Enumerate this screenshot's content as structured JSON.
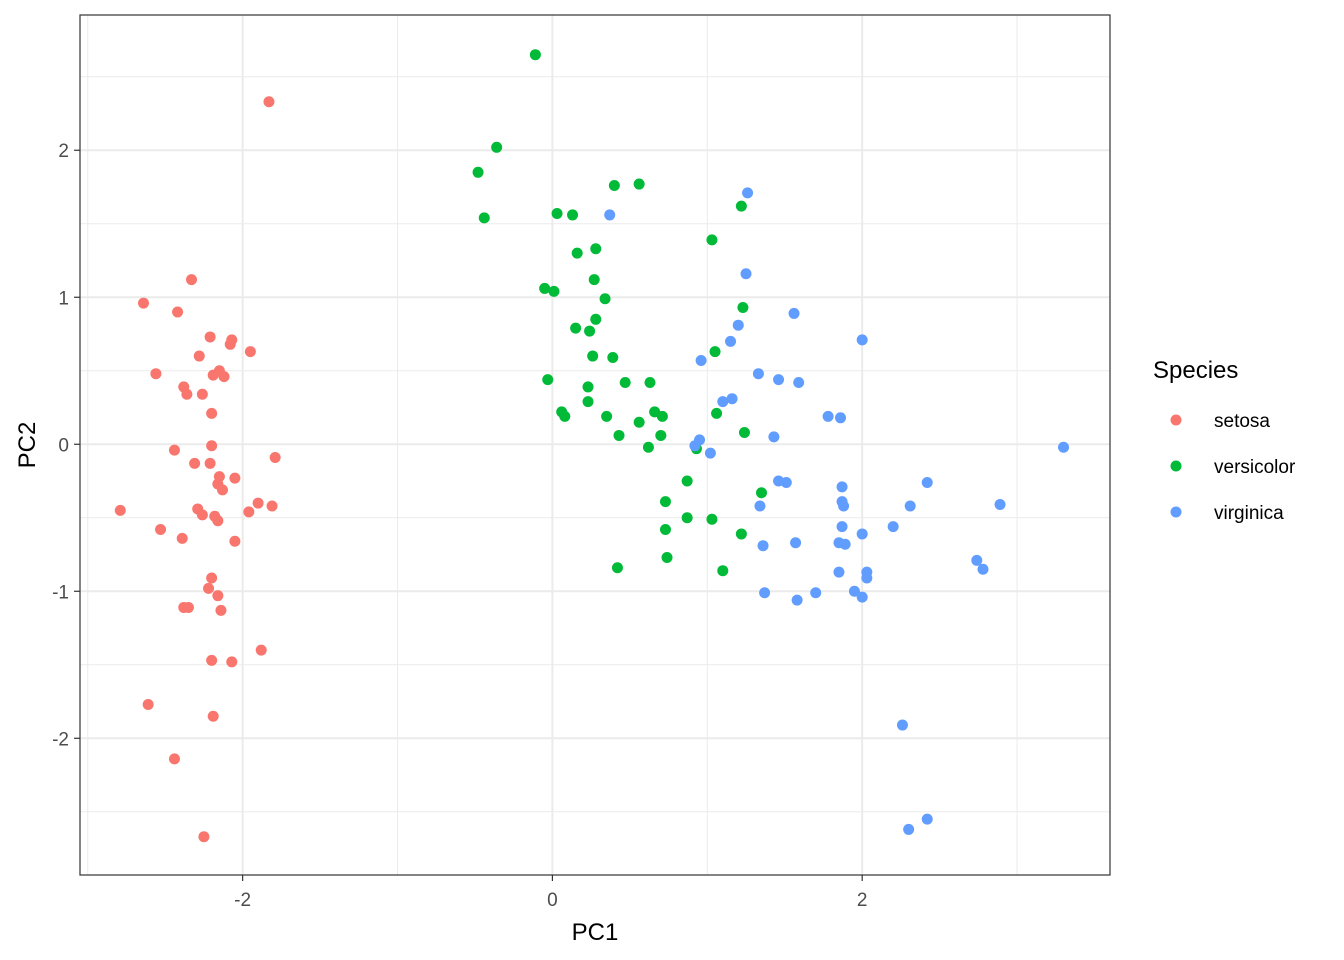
{
  "chart_data": {
    "type": "scatter",
    "xlabel": "PC1",
    "ylabel": "PC2",
    "xlim": [
      -3.05,
      3.6
    ],
    "ylim": [
      -2.93,
      2.92
    ],
    "x_major_ticks": [
      -2,
      0,
      2
    ],
    "x_minor_ticks": [
      -3,
      -1,
      1,
      3
    ],
    "y_major_ticks": [
      -2,
      -1,
      0,
      1,
      2
    ],
    "y_minor_ticks": [
      -2.5,
      -1.5,
      -0.5,
      0.5,
      1.5,
      2.5
    ],
    "x_tick_labels": [
      "-2",
      "0",
      "2"
    ],
    "y_tick_labels": [
      "-2",
      "-1",
      "0",
      "1",
      "2"
    ],
    "grid": true,
    "legend": {
      "title": "Species",
      "position": "right"
    },
    "series": [
      {
        "name": "setosa",
        "color": "#F8766D",
        "points": [
          [
            -1.83,
            2.33
          ],
          [
            -2.33,
            1.12
          ],
          [
            -2.64,
            0.96
          ],
          [
            -2.42,
            0.9
          ],
          [
            -2.21,
            0.73
          ],
          [
            -2.07,
            0.71
          ],
          [
            -2.08,
            0.68
          ],
          [
            -2.28,
            0.6
          ],
          [
            -1.95,
            0.63
          ],
          [
            -2.56,
            0.48
          ],
          [
            -2.15,
            0.5
          ],
          [
            -2.19,
            0.47
          ],
          [
            -2.12,
            0.46
          ],
          [
            -2.38,
            0.39
          ],
          [
            -2.36,
            0.34
          ],
          [
            -2.26,
            0.34
          ],
          [
            -2.2,
            0.21
          ],
          [
            -2.2,
            -0.01
          ],
          [
            -2.44,
            -0.04
          ],
          [
            -1.79,
            -0.09
          ],
          [
            -2.31,
            -0.13
          ],
          [
            -2.21,
            -0.13
          ],
          [
            -2.15,
            -0.22
          ],
          [
            -2.05,
            -0.23
          ],
          [
            -2.16,
            -0.27
          ],
          [
            -2.13,
            -0.31
          ],
          [
            -1.9,
            -0.4
          ],
          [
            -1.81,
            -0.42
          ],
          [
            -2.29,
            -0.44
          ],
          [
            -1.96,
            -0.46
          ],
          [
            -2.79,
            -0.45
          ],
          [
            -2.26,
            -0.48
          ],
          [
            -2.18,
            -0.49
          ],
          [
            -2.16,
            -0.52
          ],
          [
            -2.53,
            -0.58
          ],
          [
            -2.39,
            -0.64
          ],
          [
            -2.05,
            -0.66
          ],
          [
            -2.2,
            -0.91
          ],
          [
            -2.22,
            -0.98
          ],
          [
            -2.16,
            -1.03
          ],
          [
            -2.38,
            -1.11
          ],
          [
            -2.35,
            -1.11
          ],
          [
            -2.14,
            -1.13
          ],
          [
            -1.88,
            -1.4
          ],
          [
            -2.2,
            -1.47
          ],
          [
            -2.07,
            -1.48
          ],
          [
            -2.61,
            -1.77
          ],
          [
            -2.19,
            -1.85
          ],
          [
            -2.44,
            -2.14
          ],
          [
            -2.25,
            -2.67
          ]
        ]
      },
      {
        "name": "versicolor",
        "color": "#00BA38",
        "points": [
          [
            -0.11,
            2.65
          ],
          [
            -0.36,
            2.02
          ],
          [
            -0.48,
            1.85
          ],
          [
            0.56,
            1.77
          ],
          [
            0.4,
            1.76
          ],
          [
            -0.44,
            1.54
          ],
          [
            0.03,
            1.57
          ],
          [
            0.13,
            1.56
          ],
          [
            1.22,
            1.62
          ],
          [
            0.16,
            1.3
          ],
          [
            0.28,
            1.33
          ],
          [
            1.03,
            1.39
          ],
          [
            0.27,
            1.12
          ],
          [
            -0.05,
            1.06
          ],
          [
            0.01,
            1.04
          ],
          [
            0.34,
            0.99
          ],
          [
            1.23,
            0.93
          ],
          [
            0.28,
            0.85
          ],
          [
            0.15,
            0.79
          ],
          [
            0.24,
            0.77
          ],
          [
            1.05,
            0.63
          ],
          [
            0.26,
            0.6
          ],
          [
            0.39,
            0.59
          ],
          [
            -0.03,
            0.44
          ],
          [
            0.47,
            0.42
          ],
          [
            0.63,
            0.42
          ],
          [
            0.23,
            0.39
          ],
          [
            0.23,
            0.29
          ],
          [
            0.06,
            0.22
          ],
          [
            0.08,
            0.19
          ],
          [
            0.35,
            0.19
          ],
          [
            0.66,
            0.22
          ],
          [
            0.71,
            0.19
          ],
          [
            1.06,
            0.21
          ],
          [
            0.56,
            0.15
          ],
          [
            1.24,
            0.08
          ],
          [
            0.43,
            0.06
          ],
          [
            0.7,
            0.06
          ],
          [
            0.62,
            -0.02
          ],
          [
            0.93,
            -0.03
          ],
          [
            0.87,
            -0.25
          ],
          [
            1.35,
            -0.33
          ],
          [
            0.73,
            -0.39
          ],
          [
            0.87,
            -0.5
          ],
          [
            1.03,
            -0.51
          ],
          [
            0.73,
            -0.58
          ],
          [
            1.22,
            -0.61
          ],
          [
            0.74,
            -0.77
          ],
          [
            0.42,
            -0.84
          ],
          [
            1.1,
            -0.86
          ]
        ]
      },
      {
        "name": "virginica",
        "color": "#619CFF",
        "points": [
          [
            1.26,
            1.71
          ],
          [
            0.37,
            1.56
          ],
          [
            1.25,
            1.16
          ],
          [
            1.56,
            0.89
          ],
          [
            1.2,
            0.81
          ],
          [
            1.15,
            0.7
          ],
          [
            2.0,
            0.71
          ],
          [
            0.96,
            0.57
          ],
          [
            1.33,
            0.48
          ],
          [
            1.46,
            0.44
          ],
          [
            1.59,
            0.42
          ],
          [
            1.16,
            0.31
          ],
          [
            1.1,
            0.29
          ],
          [
            1.78,
            0.19
          ],
          [
            1.86,
            0.18
          ],
          [
            1.43,
            0.05
          ],
          [
            0.95,
            0.03
          ],
          [
            0.92,
            -0.01
          ],
          [
            1.02,
            -0.06
          ],
          [
            3.3,
            -0.02
          ],
          [
            1.46,
            -0.25
          ],
          [
            1.51,
            -0.26
          ],
          [
            2.42,
            -0.26
          ],
          [
            1.87,
            -0.29
          ],
          [
            1.87,
            -0.39
          ],
          [
            1.88,
            -0.42
          ],
          [
            1.34,
            -0.42
          ],
          [
            2.31,
            -0.42
          ],
          [
            2.89,
            -0.41
          ],
          [
            2.2,
            -0.56
          ],
          [
            1.87,
            -0.56
          ],
          [
            2.0,
            -0.61
          ],
          [
            1.85,
            -0.67
          ],
          [
            1.89,
            -0.68
          ],
          [
            1.36,
            -0.69
          ],
          [
            1.57,
            -0.67
          ],
          [
            2.74,
            -0.79
          ],
          [
            2.78,
            -0.85
          ],
          [
            1.85,
            -0.87
          ],
          [
            2.03,
            -0.87
          ],
          [
            2.03,
            -0.91
          ],
          [
            1.95,
            -1.0
          ],
          [
            1.7,
            -1.01
          ],
          [
            1.37,
            -1.01
          ],
          [
            2.0,
            -1.04
          ],
          [
            1.58,
            -1.06
          ],
          [
            2.26,
            -1.91
          ],
          [
            2.42,
            -2.55
          ],
          [
            2.3,
            -2.62
          ]
        ]
      }
    ]
  }
}
